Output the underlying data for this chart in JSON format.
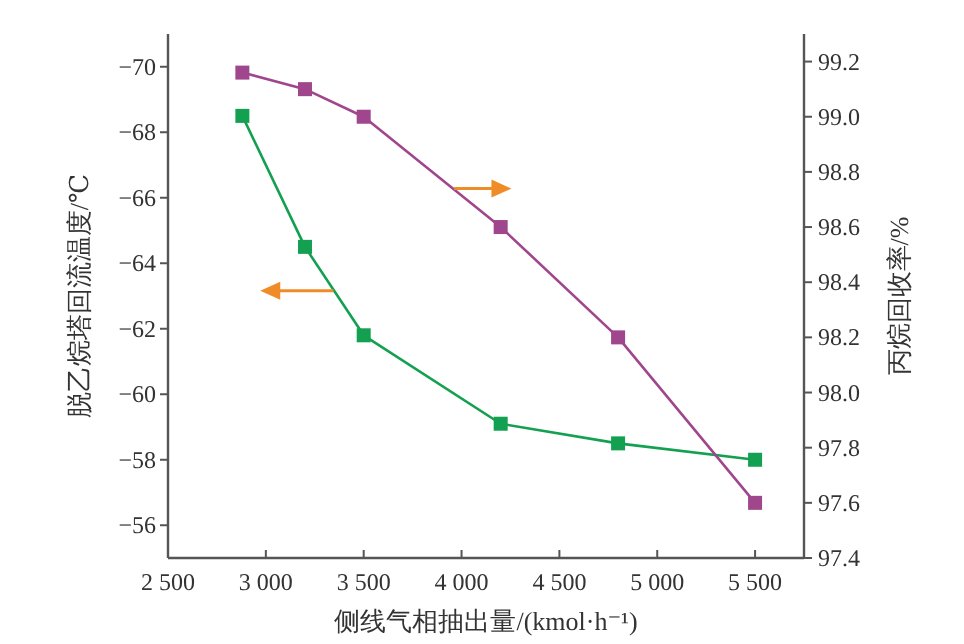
{
  "chart_data": {
    "type": "line",
    "xlabel": "侧线气相抽出量/(kmol·h⁻¹)",
    "ylabel": "脱乙烷塔回流温度/℃",
    "y2label": "丙烷回收率/%",
    "marker": "square",
    "line_style": "solid",
    "grid": false,
    "xlim": [
      2500,
      5750
    ],
    "xticks": [
      {
        "value": 2500,
        "label": "2 500"
      },
      {
        "value": 3000,
        "label": "3 000"
      },
      {
        "value": 3500,
        "label": "3 500"
      },
      {
        "value": 4000,
        "label": "4 000"
      },
      {
        "value": 4500,
        "label": "4 500"
      },
      {
        "value": 5000,
        "label": "5 000"
      },
      {
        "value": 5500,
        "label": "5 500"
      }
    ],
    "ylim": [
      -55,
      -71
    ],
    "yticks": [
      {
        "value": -70,
        "label": "−70"
      },
      {
        "value": -68,
        "label": "−68"
      },
      {
        "value": -66,
        "label": "−66"
      },
      {
        "value": -64,
        "label": "−64"
      },
      {
        "value": -62,
        "label": "−62"
      },
      {
        "value": -60,
        "label": "−60"
      },
      {
        "value": -58,
        "label": "−58"
      },
      {
        "value": -56,
        "label": "−56"
      }
    ],
    "y2lim": [
      97.4,
      99.3
    ],
    "y2ticks": [
      {
        "value": 97.4,
        "label": "97.4"
      },
      {
        "value": 97.6,
        "label": "97.6"
      },
      {
        "value": 97.8,
        "label": "97.8"
      },
      {
        "value": 98.0,
        "label": "98.0"
      },
      {
        "value": 98.2,
        "label": "98.2"
      },
      {
        "value": 98.4,
        "label": "98.4"
      },
      {
        "value": 98.6,
        "label": "98.6"
      },
      {
        "value": 98.8,
        "label": "98.8"
      },
      {
        "value": 99.0,
        "label": "99.0"
      },
      {
        "value": 99.2,
        "label": "99.2"
      }
    ],
    "x": [
      2880,
      3200,
      3500,
      4200,
      4800,
      5500
    ],
    "series": [
      {
        "color": "#13a050",
        "values": [
          -68.5,
          -64.5,
          -61.8,
          -59.1,
          -58.5,
          -58.0
        ]
      },
      {
        "color": "#a0468c",
        "axis": "y2",
        "values": [
          99.16,
          99.1,
          99.0,
          98.6,
          98.2,
          97.6
        ]
      }
    ]
  }
}
